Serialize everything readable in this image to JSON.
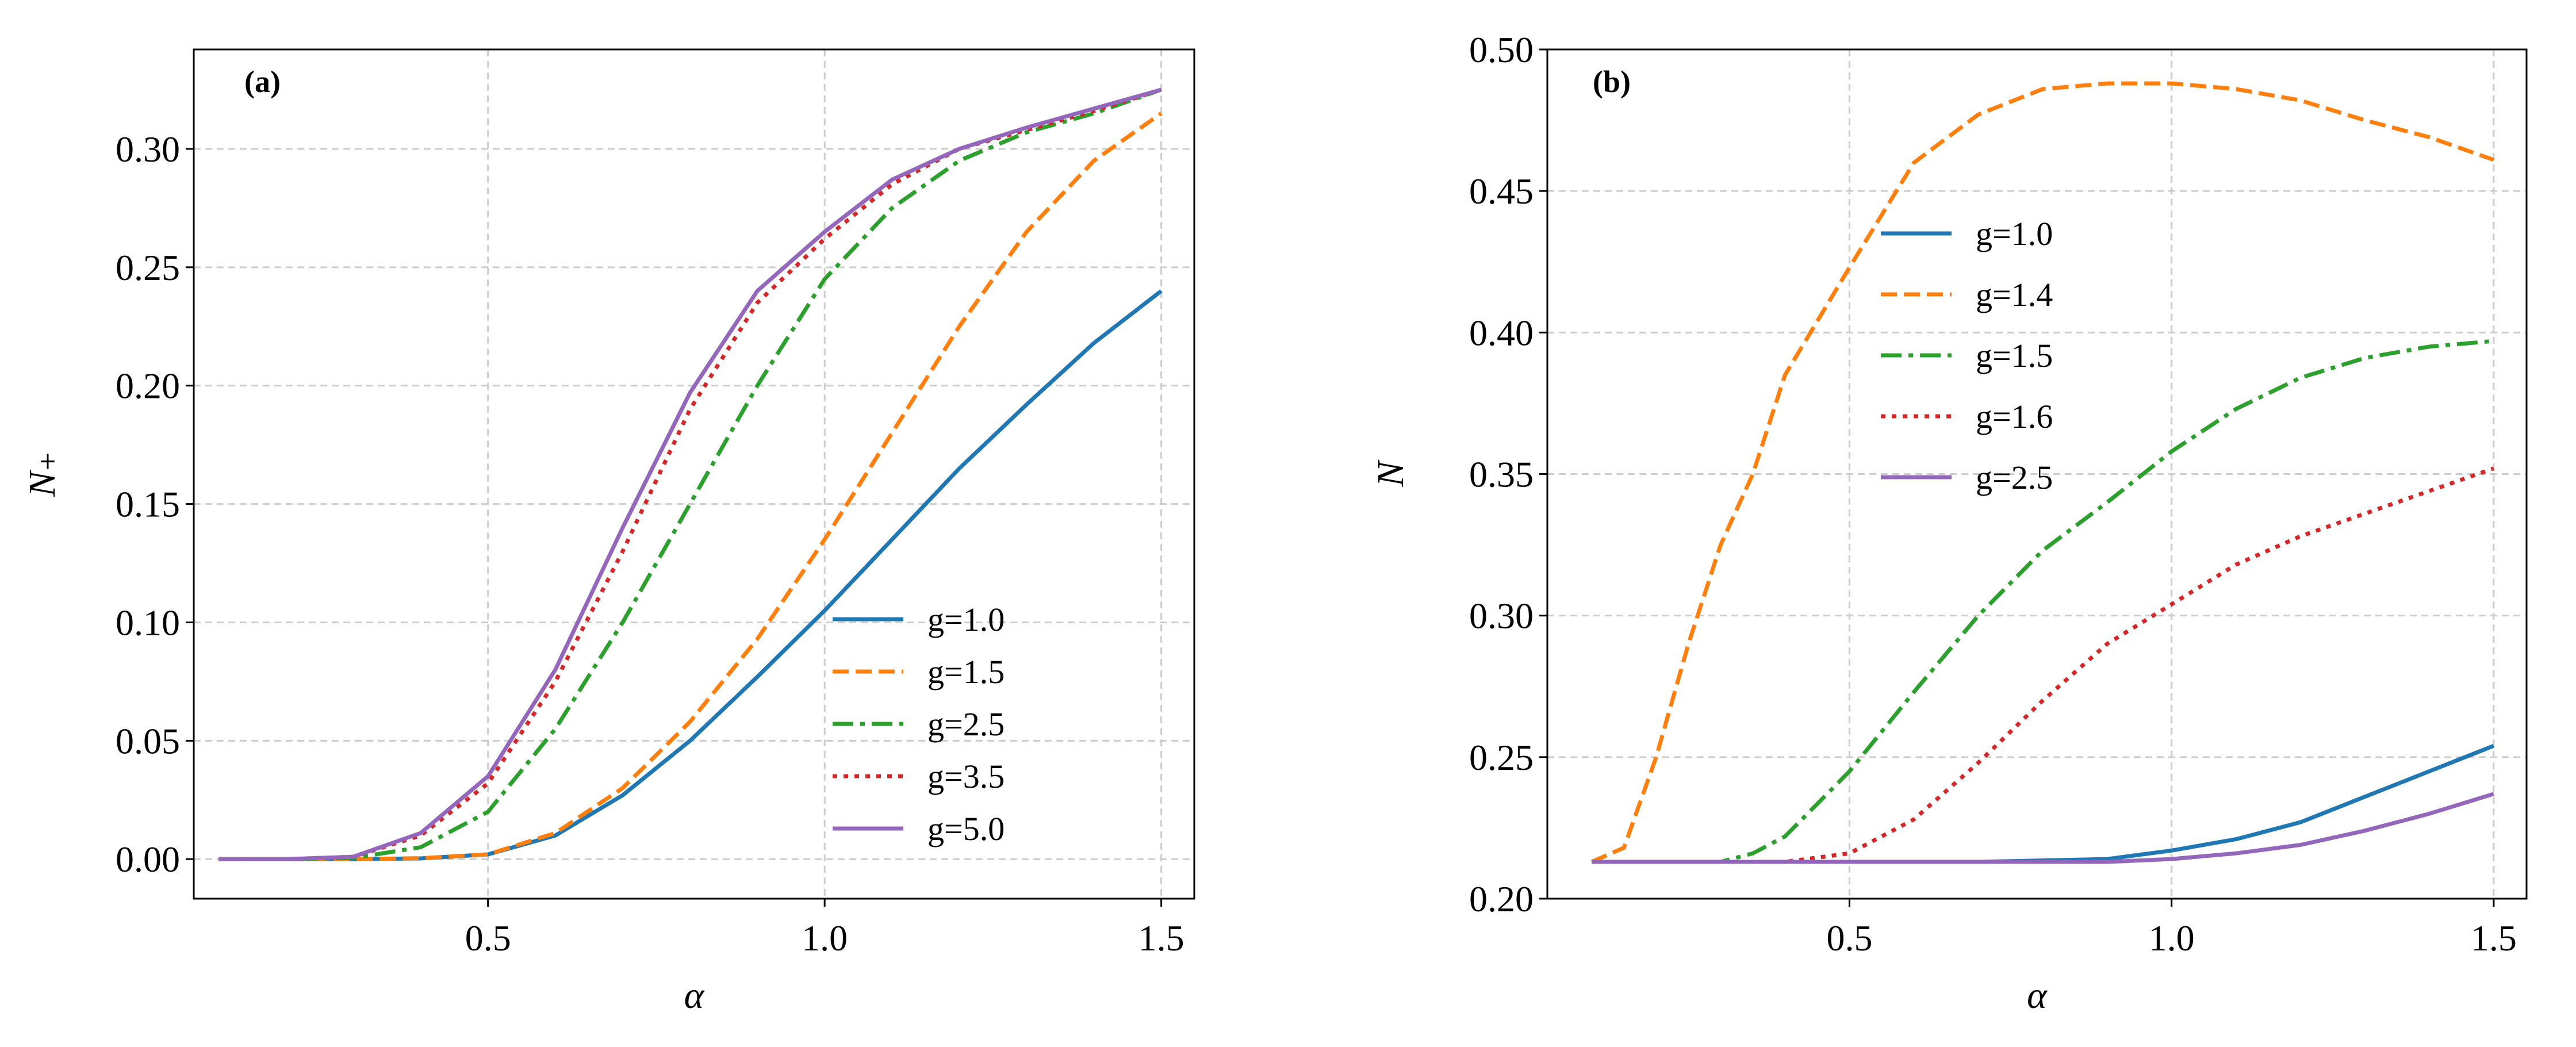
{
  "chart_data": [
    {
      "type": "line",
      "panel_label": "(a)",
      "xlabel": "α",
      "ylabel": "N₊",
      "xlim": [
        0.063,
        1.549
      ],
      "ylim": [
        -0.0167,
        0.342
      ],
      "xticks": [
        0.5,
        1.0,
        1.5
      ],
      "xtick_labels": [
        "0.5",
        "1.0",
        "1.5"
      ],
      "yticks": [
        0,
        0.05,
        0.1,
        0.15,
        0.2,
        0.25,
        0.3
      ],
      "ytick_labels": [
        "0.00",
        "0.05",
        "0.10",
        "0.15",
        "0.20",
        "0.25",
        "0.30"
      ],
      "grid": true,
      "legend_placement": "lower-right",
      "series": [
        {
          "name": "g=1.0",
          "color": "#1f77b4",
          "style": "solid",
          "x": [
            0.1,
            0.2,
            0.3,
            0.4,
            0.5,
            0.6,
            0.7,
            0.8,
            0.9,
            1.0,
            1.1,
            1.2,
            1.3,
            1.4,
            1.5
          ],
          "y": [
            0,
            0,
            0,
            0.0003,
            0.002,
            0.01,
            0.027,
            0.05,
            0.077,
            0.105,
            0.135,
            0.165,
            0.192,
            0.218,
            0.24
          ]
        },
        {
          "name": "g=1.5",
          "color": "#ff7f0e",
          "style": "dashed",
          "x": [
            0.1,
            0.2,
            0.3,
            0.4,
            0.5,
            0.6,
            0.7,
            0.8,
            0.9,
            1.0,
            1.1,
            1.2,
            1.3,
            1.4,
            1.5
          ],
          "y": [
            0,
            0,
            0,
            0.0004,
            0.002,
            0.011,
            0.03,
            0.058,
            0.093,
            0.135,
            0.18,
            0.225,
            0.265,
            0.295,
            0.315
          ]
        },
        {
          "name": "g=2.5",
          "color": "#2ca02c",
          "style": "dashdot",
          "x": [
            0.1,
            0.2,
            0.3,
            0.4,
            0.5,
            0.6,
            0.7,
            0.8,
            0.9,
            1.0,
            1.1,
            1.2,
            1.3,
            1.4,
            1.5
          ],
          "y": [
            0,
            0,
            0.0005,
            0.005,
            0.02,
            0.055,
            0.1,
            0.15,
            0.2,
            0.245,
            0.275,
            0.295,
            0.307,
            0.315,
            0.325
          ]
        },
        {
          "name": "g=3.5",
          "color": "#d62728",
          "style": "dotted",
          "x": [
            0.1,
            0.2,
            0.3,
            0.4,
            0.5,
            0.6,
            0.7,
            0.8,
            0.9,
            1.0,
            1.1,
            1.2,
            1.3,
            1.4,
            1.5
          ],
          "y": [
            0,
            0,
            0.001,
            0.01,
            0.032,
            0.075,
            0.13,
            0.19,
            0.235,
            0.262,
            0.285,
            0.3,
            0.308,
            0.316,
            0.325
          ]
        },
        {
          "name": "g=5.0",
          "color": "#9467bd",
          "style": "solid",
          "x": [
            0.1,
            0.2,
            0.3,
            0.4,
            0.5,
            0.6,
            0.7,
            0.8,
            0.9,
            1.0,
            1.1,
            1.2,
            1.3,
            1.4,
            1.5
          ],
          "y": [
            0,
            0,
            0.001,
            0.011,
            0.035,
            0.08,
            0.14,
            0.197,
            0.24,
            0.265,
            0.287,
            0.3,
            0.309,
            0.317,
            0.325
          ]
        }
      ]
    },
    {
      "type": "line",
      "panel_label": "(b)",
      "xlabel": "α",
      "ylabel": "N",
      "xlim": [
        0.031,
        1.551
      ],
      "ylim": [
        0.2,
        0.5
      ],
      "xticks": [
        0.5,
        1.0,
        1.5
      ],
      "xtick_labels": [
        "0.5",
        "1.0",
        "1.5"
      ],
      "yticks": [
        0.2,
        0.25,
        0.3,
        0.35,
        0.4,
        0.45,
        0.5
      ],
      "ytick_labels": [
        "0.20",
        "0.25",
        "0.30",
        "0.35",
        "0.40",
        "0.45",
        "0.50"
      ],
      "grid": true,
      "legend_placement": "upper-center",
      "series": [
        {
          "name": "g=1.0",
          "color": "#1f77b4",
          "style": "solid",
          "x": [
            0.1,
            0.3,
            0.5,
            0.7,
            0.9,
            1.0,
            1.1,
            1.2,
            1.3,
            1.4,
            1.5
          ],
          "y": [
            0.213,
            0.213,
            0.213,
            0.213,
            0.214,
            0.217,
            0.221,
            0.227,
            0.236,
            0.245,
            0.254
          ]
        },
        {
          "name": "g=1.4",
          "color": "#ff7f0e",
          "style": "dashed",
          "x": [
            0.1,
            0.15,
            0.2,
            0.25,
            0.3,
            0.35,
            0.4,
            0.5,
            0.6,
            0.7,
            0.8,
            0.9,
            1.0,
            1.1,
            1.2,
            1.3,
            1.4,
            1.5
          ],
          "y": [
            0.213,
            0.218,
            0.25,
            0.29,
            0.325,
            0.35,
            0.385,
            0.423,
            0.46,
            0.477,
            0.486,
            0.488,
            0.488,
            0.486,
            0.482,
            0.475,
            0.469,
            0.461
          ]
        },
        {
          "name": "g=1.5",
          "color": "#2ca02c",
          "style": "dashdot",
          "x": [
            0.1,
            0.3,
            0.35,
            0.4,
            0.5,
            0.6,
            0.7,
            0.8,
            0.9,
            1.0,
            1.1,
            1.2,
            1.3,
            1.4,
            1.5
          ],
          "y": [
            0.213,
            0.213,
            0.216,
            0.222,
            0.245,
            0.273,
            0.3,
            0.323,
            0.34,
            0.358,
            0.373,
            0.384,
            0.391,
            0.395,
            0.397
          ]
        },
        {
          "name": "g=1.6",
          "color": "#d62728",
          "style": "dotted",
          "x": [
            0.1,
            0.4,
            0.5,
            0.6,
            0.7,
            0.8,
            0.9,
            1.0,
            1.1,
            1.2,
            1.3,
            1.4,
            1.5
          ],
          "y": [
            0.213,
            0.213,
            0.216,
            0.228,
            0.248,
            0.27,
            0.29,
            0.304,
            0.318,
            0.328,
            0.336,
            0.344,
            0.352
          ]
        },
        {
          "name": "g=2.5",
          "color": "#9467bd",
          "style": "solid",
          "x": [
            0.1,
            0.5,
            0.9,
            1.0,
            1.1,
            1.2,
            1.3,
            1.4,
            1.5
          ],
          "y": [
            0.213,
            0.213,
            0.213,
            0.214,
            0.216,
            0.219,
            0.224,
            0.23,
            0.237
          ]
        }
      ]
    }
  ]
}
